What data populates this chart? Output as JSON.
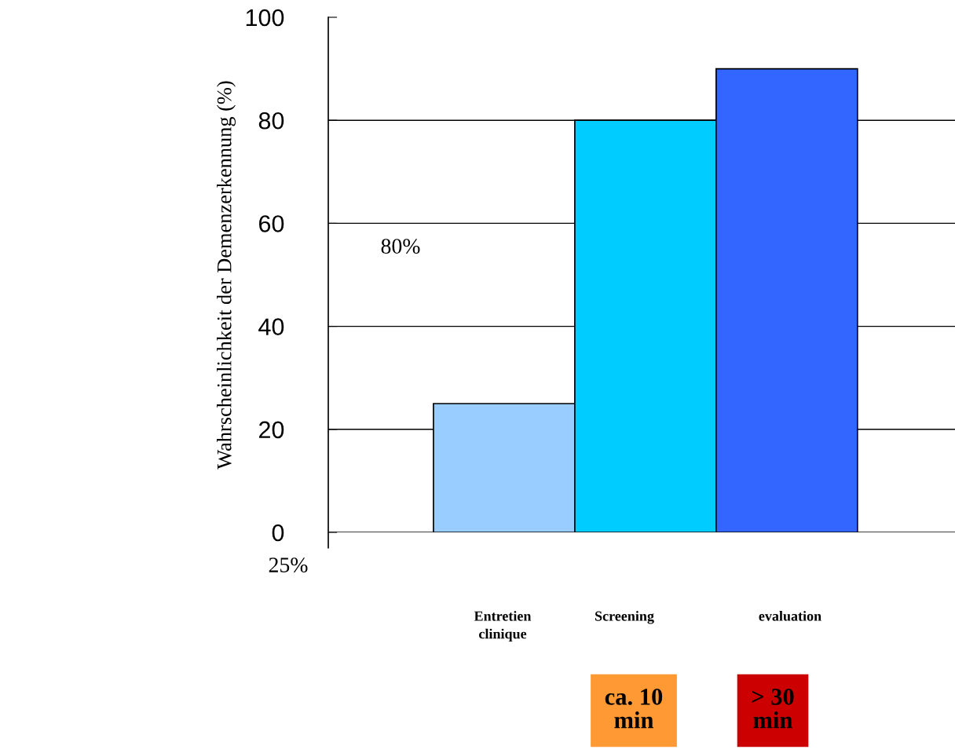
{
  "chart_data": {
    "type": "bar",
    "categories": [
      "Entretien\nclinique",
      "Screening",
      "evaluation"
    ],
    "values": [
      25,
      80,
      90
    ],
    "colors": [
      "#99ccff",
      "#00ccff",
      "#3366ff"
    ],
    "ylabel": "Wahrscheinlichkeit der Demenzerkennung (%)",
    "ylim": [
      0,
      100
    ],
    "yticks": [
      0,
      20,
      40,
      60,
      80,
      100
    ],
    "grid": "y",
    "legend": false,
    "annotations": [
      "80%",
      "25%",
      "ca. 10\nmin",
      "> 30\nmin"
    ]
  }
}
